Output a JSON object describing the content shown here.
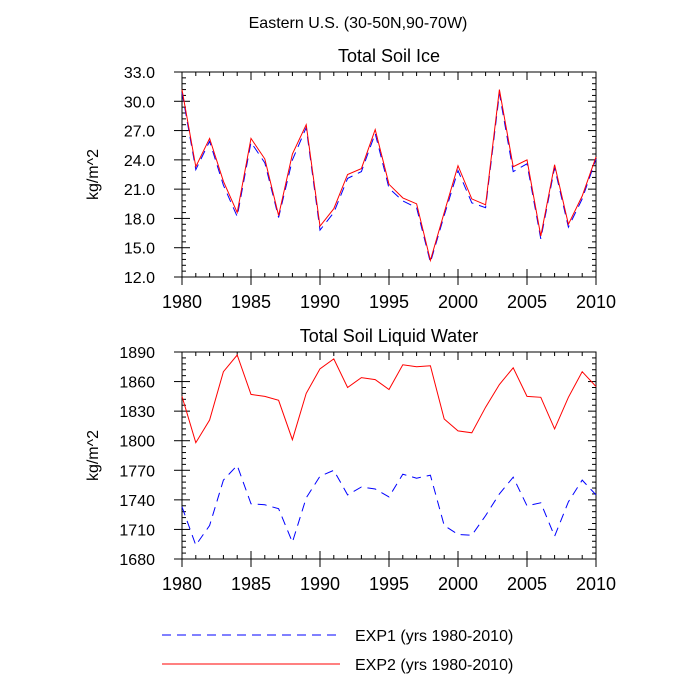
{
  "figure_title": "Eastern U.S. (30-50N,90-70W)",
  "legend": [
    {
      "label": "EXP1 (yrs 1980-2010)",
      "color": "#0000ff",
      "dash": "dashed"
    },
    {
      "label": "EXP2 (yrs 1980-2010)",
      "color": "#ff0000",
      "dash": "solid"
    }
  ],
  "chart_data": [
    {
      "type": "line",
      "title": "Total Soil Ice",
      "xlabel": "",
      "ylabel": "kg/m^2",
      "xlim": [
        1980,
        2010
      ],
      "ylim": [
        12,
        33
      ],
      "xticks": [
        "1980",
        "1985",
        "1990",
        "1995",
        "2000",
        "2005",
        "2010"
      ],
      "yticks": [
        "12.0",
        "15.0",
        "18.0",
        "21.0",
        "24.0",
        "27.0",
        "30.0",
        "33.0"
      ],
      "x": [
        1980,
        1981,
        1982,
        1983,
        1984,
        1985,
        1986,
        1987,
        1988,
        1989,
        1990,
        1991,
        1992,
        1993,
        1994,
        1995,
        1996,
        1997,
        1998,
        1999,
        2000,
        2001,
        2002,
        2003,
        2004,
        2005,
        2006,
        2007,
        2008,
        2009,
        2010
      ],
      "series": [
        {
          "name": "EXP1 (yrs 1980-2010)",
          "color": "#0000ff",
          "dash": "dashed",
          "values": [
            30.9,
            23.0,
            25.9,
            21.4,
            18.2,
            25.8,
            23.7,
            18.1,
            24.0,
            27.3,
            16.8,
            18.6,
            22.1,
            22.8,
            26.7,
            21.1,
            19.8,
            19.1,
            13.5,
            18.3,
            22.9,
            19.6,
            19.1,
            30.8,
            22.8,
            23.6,
            15.9,
            23.2,
            17.1,
            20.0,
            24.1
          ]
        },
        {
          "name": "EXP2 (yrs 1980-2010)",
          "color": "#ff0000",
          "dash": "solid",
          "values": [
            31.2,
            23.3,
            26.2,
            21.8,
            18.6,
            26.2,
            24.1,
            18.3,
            24.6,
            27.6,
            17.2,
            19.0,
            22.5,
            23.1,
            27.1,
            21.5,
            20.1,
            19.5,
            13.7,
            18.6,
            23.4,
            20.0,
            19.4,
            31.2,
            23.3,
            24.0,
            16.2,
            23.5,
            17.4,
            20.3,
            24.3
          ]
        }
      ]
    },
    {
      "type": "line",
      "title": "Total Soil Liquid Water",
      "xlabel": "",
      "ylabel": "kg/m^2",
      "xlim": [
        1980,
        2010
      ],
      "ylim": [
        1680,
        1890
      ],
      "xticks": [
        "1980",
        "1985",
        "1990",
        "1995",
        "2000",
        "2005",
        "2010"
      ],
      "yticks": [
        "1680",
        "1710",
        "1740",
        "1770",
        "1800",
        "1830",
        "1860",
        "1890"
      ],
      "x": [
        1980,
        1981,
        1982,
        1983,
        1984,
        1985,
        1986,
        1987,
        1988,
        1989,
        1990,
        1991,
        1992,
        1993,
        1994,
        1995,
        1996,
        1997,
        1998,
        1999,
        2000,
        2001,
        2002,
        2003,
        2004,
        2005,
        2006,
        2007,
        2008,
        2009,
        2010
      ],
      "series": [
        {
          "name": "EXP1 (yrs 1980-2010)",
          "color": "#0000ff",
          "dash": "dashed",
          "values": [
            1733,
            1694,
            1714,
            1760,
            1775,
            1736,
            1735,
            1731,
            1697,
            1742,
            1764,
            1770,
            1745,
            1753,
            1751,
            1743,
            1766,
            1762,
            1765,
            1714,
            1705,
            1704,
            1724,
            1746,
            1763,
            1734,
            1737,
            1703,
            1738,
            1760,
            1745
          ]
        },
        {
          "name": "EXP2 (yrs 1980-2010)",
          "color": "#ff0000",
          "dash": "solid",
          "values": [
            1845,
            1798,
            1821,
            1870,
            1887,
            1847,
            1845,
            1841,
            1801,
            1848,
            1873,
            1883,
            1854,
            1864,
            1862,
            1852,
            1877,
            1875,
            1876,
            1822,
            1810,
            1808,
            1834,
            1857,
            1874,
            1845,
            1844,
            1812,
            1844,
            1870,
            1855
          ]
        }
      ]
    }
  ]
}
